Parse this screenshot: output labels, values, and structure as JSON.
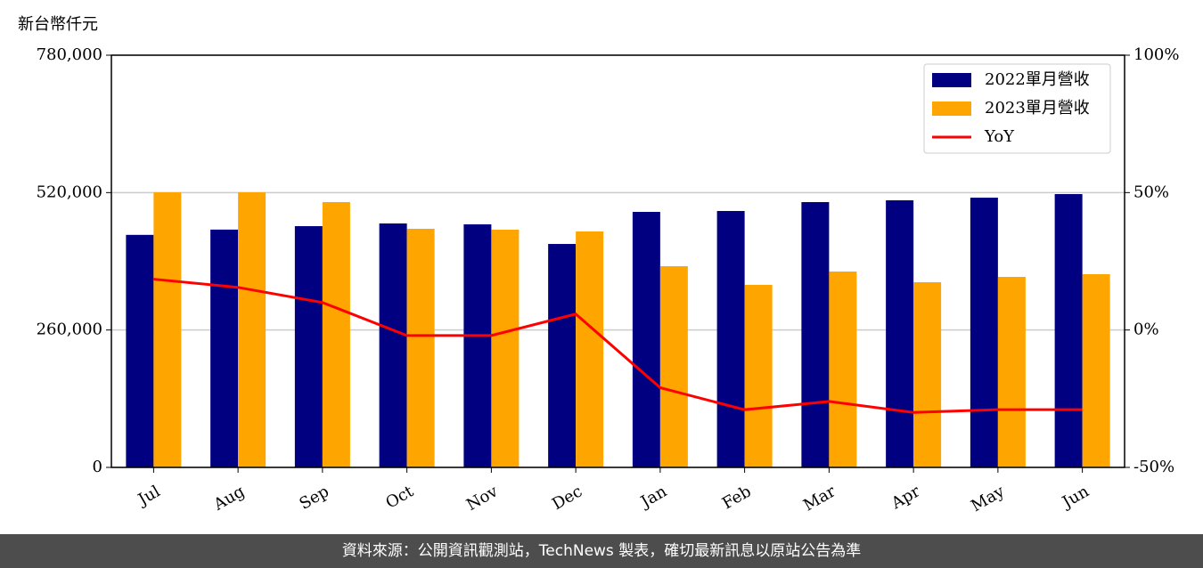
{
  "chart_data": {
    "type": "bar",
    "y_label": "新台幣仟元",
    "categories": [
      "Jul",
      "Aug",
      "Sep",
      "Oct",
      "Nov",
      "Dec",
      "Jan",
      "Feb",
      "Mar",
      "Apr",
      "May",
      "Jun"
    ],
    "series": [
      {
        "name": "2022單月營收",
        "color": "#000080",
        "type": "bar",
        "values": [
          440000,
          450000,
          456500,
          461600,
          459900,
          422800,
          483500,
          485200,
          502000,
          505400,
          510400,
          517200
        ]
      },
      {
        "name": "2023單月營收",
        "color": "#ffa500",
        "type": "bar",
        "values": [
          520500,
          520500,
          502000,
          451500,
          449800,
          446400,
          380700,
          345400,
          370600,
          350400,
          360500,
          365600
        ]
      },
      {
        "name": "YoY",
        "color": "#ff0000",
        "type": "line",
        "axis": "y2",
        "values": [
          18.5,
          15.5,
          10,
          -2,
          -2,
          5.8,
          -21,
          -29,
          -26,
          -30,
          -29,
          -29
        ]
      }
    ],
    "ylim": [
      0,
      780000
    ],
    "yticks": [
      0,
      {
        "value": 260000,
        "label": "260,000"
      },
      {
        "value": 520000,
        "label": "520,000"
      },
      {
        "value": 780000,
        "label": "780,000"
      }
    ],
    "y2lim": [
      -50,
      100
    ],
    "y2ticks": [
      {
        "value": -50,
        "label": "-50%"
      },
      {
        "value": 0,
        "label": "0%"
      },
      {
        "value": 50,
        "label": "50%"
      },
      {
        "value": 100,
        "label": "100%"
      }
    ],
    "grid": true,
    "legend": "upper right"
  },
  "footer": {
    "text": "資料來源：公開資訊觀測站，TechNews 製表，確切最新訊息以原站公告為準"
  }
}
